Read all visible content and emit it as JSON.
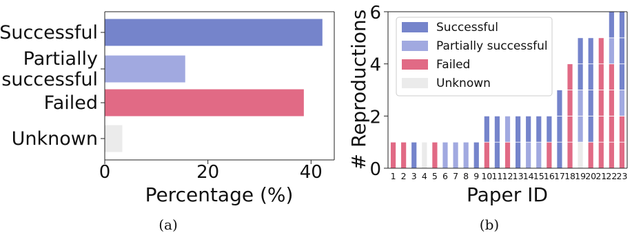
{
  "captions": {
    "a": "(a)",
    "b": "(b)"
  },
  "colors": {
    "Successful": "#7584cb",
    "Partially successful": "#a1a9e0",
    "Failed": "#e16a85",
    "Unknown": "#ebebeb"
  },
  "chart_data": [
    {
      "type": "bar",
      "orientation": "horizontal",
      "categories": [
        "Successful",
        "Partially successful",
        "Failed",
        "Unknown"
      ],
      "category_tick_lines": [
        [
          "Successful"
        ],
        [
          "Partially",
          "successful"
        ],
        [
          "Failed"
        ],
        [
          "Unknown"
        ]
      ],
      "values": [
        42.2,
        15.6,
        38.6,
        3.4
      ],
      "xlabel": "Percentage (%)",
      "xlim": [
        0,
        44.5
      ],
      "xticks": [
        0,
        20,
        40
      ],
      "grid": false
    },
    {
      "type": "bar",
      "stacked": true,
      "categories": [
        "1",
        "2",
        "3",
        "4",
        "5",
        "6",
        "7",
        "8",
        "9",
        "10",
        "11",
        "12",
        "13",
        "14",
        "15",
        "16",
        "17",
        "18",
        "19",
        "20",
        "21",
        "22",
        "23"
      ],
      "xlabel": "Paper ID",
      "ylabel": "# Reproductions",
      "ylim": [
        0,
        6
      ],
      "yticks": [
        0,
        2,
        4,
        6
      ],
      "legend": "top-left",
      "bars": [
        [
          "Failed"
        ],
        [
          "Failed"
        ],
        [
          "Successful"
        ],
        [
          "Unknown"
        ],
        [
          "Failed"
        ],
        [
          "Partially successful"
        ],
        [
          "Partially successful"
        ],
        [
          "Partially successful"
        ],
        [
          "Successful"
        ],
        [
          "Failed",
          "Successful"
        ],
        [
          "Successful",
          "Successful"
        ],
        [
          "Failed",
          "Partially successful"
        ],
        [
          "Successful",
          "Successful"
        ],
        [
          "Partially successful",
          "Successful"
        ],
        [
          "Partially successful",
          "Successful"
        ],
        [
          "Failed",
          "Successful"
        ],
        [
          "Successful",
          "Successful",
          "Successful"
        ],
        [
          "Failed",
          "Failed",
          "Failed",
          "Failed"
        ],
        [
          "Unknown",
          "Partially successful",
          "Partially successful",
          "Successful",
          "Successful"
        ],
        [
          "Failed",
          "Successful",
          "Successful",
          "Successful",
          "Successful"
        ],
        [
          "Failed",
          "Failed",
          "Failed",
          "Failed",
          "Failed"
        ],
        [
          "Failed",
          "Failed",
          "Failed",
          "Failed",
          "Partially successful",
          "Successful"
        ],
        [
          "Failed",
          "Failed",
          "Partially successful",
          "Successful",
          "Successful",
          "Successful"
        ]
      ],
      "series": [
        {
          "name": "Successful"
        },
        {
          "name": "Partially successful"
        },
        {
          "name": "Failed"
        },
        {
          "name": "Unknown"
        }
      ]
    }
  ]
}
